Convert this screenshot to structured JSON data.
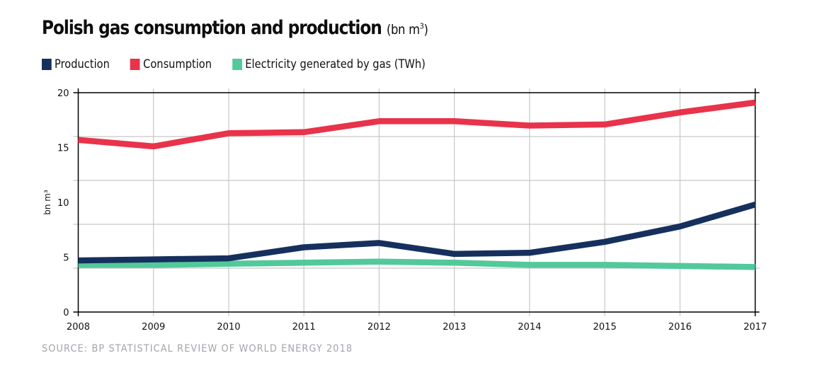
{
  "title": {
    "main": "Polish gas consumption and production",
    "unit_prefix": "(bn m",
    "unit_sup": "3",
    "unit_suffix": ")"
  },
  "source": "SOURCE: BP STATISTICAL REVIEW OF WORLD ENERGY 2018",
  "chart_data": {
    "type": "line",
    "title": "Polish gas consumption and production (bn m³)",
    "xlabel": "",
    "ylabel": "bn m³",
    "x": [
      2008,
      2009,
      2010,
      2011,
      2012,
      2013,
      2014,
      2015,
      2016,
      2017
    ],
    "x_tick_labels": [
      "2008",
      "2009",
      "2010",
      "2011",
      "2012",
      "2013",
      "2014",
      "2015",
      "2016",
      "2017"
    ],
    "ylim": [
      0,
      20
    ],
    "y_ticks": [
      0,
      5,
      10,
      15,
      20
    ],
    "y_tick_labels": [
      "0",
      "5",
      "10",
      "15",
      "20"
    ],
    "y_gridlines": [
      4,
      8,
      12,
      16
    ],
    "grid": true,
    "legend_position": "top-left",
    "series": [
      {
        "name": "Production",
        "color": "#16305e",
        "values": [
          4.7,
          4.8,
          4.9,
          5.9,
          6.3,
          5.3,
          5.4,
          6.4,
          7.8,
          9.8
        ]
      },
      {
        "name": "Consumption",
        "color": "#e8334a",
        "values": [
          15.7,
          15.1,
          16.3,
          16.4,
          17.4,
          17.4,
          17.0,
          17.1,
          18.2,
          19.1
        ]
      },
      {
        "name": "Electricity generated by gas (TWh)",
        "color": "#52c99a",
        "values": [
          4.3,
          4.3,
          4.4,
          4.5,
          4.6,
          4.5,
          4.3,
          4.3,
          4.2,
          4.1
        ]
      }
    ]
  }
}
